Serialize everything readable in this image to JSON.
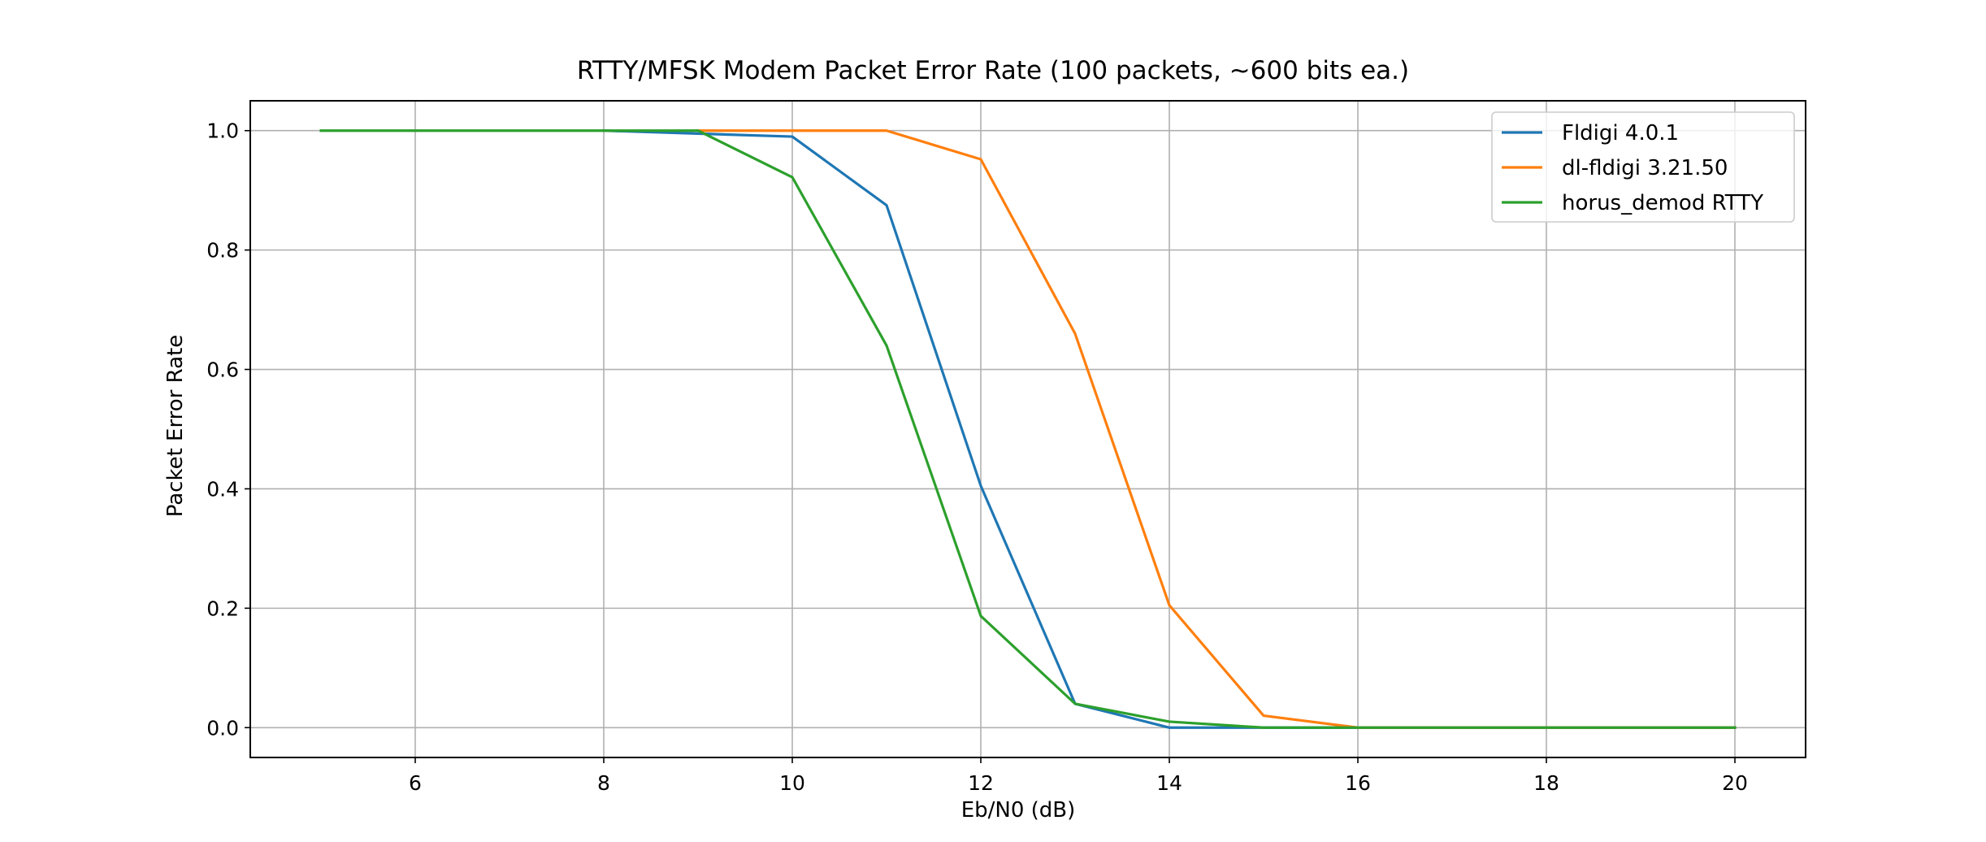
{
  "chart_data": {
    "type": "line",
    "title": "RTTY/MFSK Modem Packet Error Rate (100 packets, ~600 bits ea.)",
    "xlabel": "Eb/N0 (dB)",
    "ylabel": "Packet Error Rate",
    "xlim": [
      4.25,
      20.75
    ],
    "ylim": [
      -0.05,
      1.05
    ],
    "xticks": [
      6,
      8,
      10,
      12,
      14,
      16,
      18,
      20
    ],
    "xtick_labels": [
      "6",
      "8",
      "10",
      "12",
      "14",
      "16",
      "18",
      "20"
    ],
    "yticks": [
      0.0,
      0.2,
      0.4,
      0.6,
      0.8,
      1.0
    ],
    "ytick_labels": [
      "0.0",
      "0.2",
      "0.4",
      "0.6",
      "0.8",
      "1.0"
    ],
    "grid": true,
    "legend_position": "upper right",
    "series": [
      {
        "name": "Fldigi 4.0.1",
        "color": "#1f77b4",
        "x": [
          8,
          9,
          10,
          11,
          12,
          13,
          14,
          15,
          16,
          17,
          18,
          19,
          20
        ],
        "y": [
          1.0,
          0.995,
          0.99,
          0.875,
          0.405,
          0.04,
          0.0,
          0.0,
          0.0,
          0.0,
          0.0,
          0.0,
          0.0
        ]
      },
      {
        "name": "dl-fldigi 3.21.50",
        "color": "#ff7f0e",
        "x": [
          9,
          10,
          11,
          12,
          13,
          14,
          15,
          16,
          17,
          18,
          19,
          20
        ],
        "y": [
          1.0,
          1.0,
          1.0,
          0.952,
          0.66,
          0.205,
          0.02,
          0.0,
          0.0,
          0.0,
          0.0,
          0.0
        ]
      },
      {
        "name": "horus_demod RTTY",
        "color": "#2ca02c",
        "x": [
          5,
          6,
          7,
          8,
          9,
          10,
          11,
          12,
          13,
          14,
          15,
          16,
          17,
          18,
          19,
          20
        ],
        "y": [
          1.0,
          1.0,
          1.0,
          1.0,
          1.0,
          0.922,
          0.64,
          0.187,
          0.04,
          0.01,
          0.0,
          0.0,
          0.0,
          0.0,
          0.0,
          0.0
        ]
      }
    ]
  }
}
